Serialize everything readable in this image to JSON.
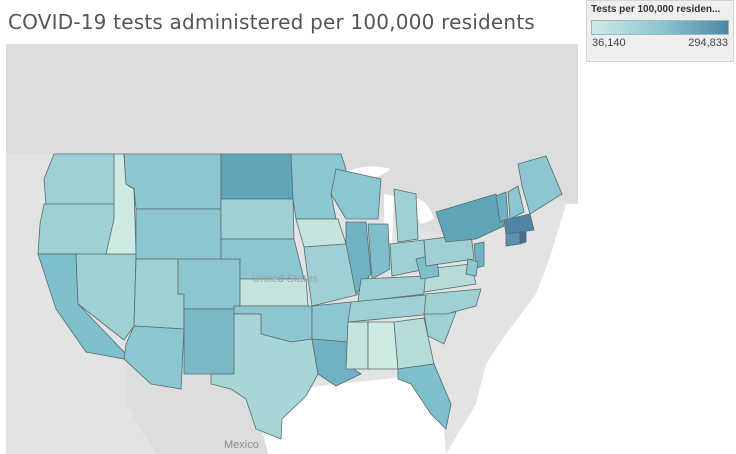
{
  "title": "COVID-19 tests administered per 100,000 residents",
  "legend": {
    "title": "Tests per 100,000 residen...",
    "min_label": "36,140",
    "max_label": "294,833",
    "color_low": "#cfe9e6",
    "color_high": "#4e86a8"
  },
  "map": {
    "country_labels": {
      "us": "United States",
      "mexico": "Mexico"
    },
    "colors": {
      "land": "#d9dcdc",
      "water": "#ffffff",
      "background": "#e7e8e8"
    }
  }
}
